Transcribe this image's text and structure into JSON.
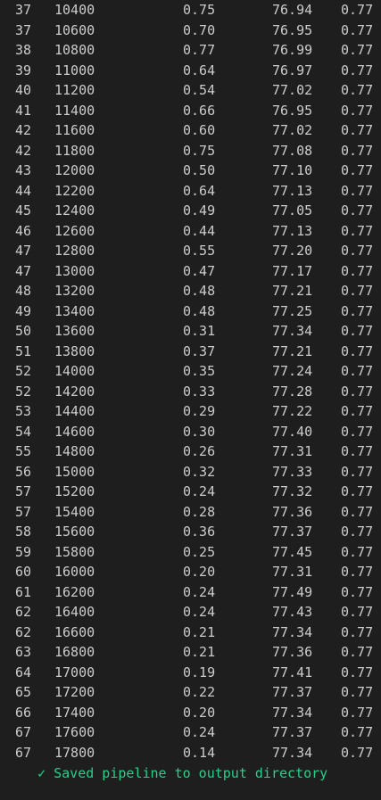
{
  "terminal": {
    "rows": [
      [
        "37",
        "10400",
        "0.75",
        "76.94",
        "0.77"
      ],
      [
        "37",
        "10600",
        "0.70",
        "76.95",
        "0.77"
      ],
      [
        "38",
        "10800",
        "0.77",
        "76.99",
        "0.77"
      ],
      [
        "39",
        "11000",
        "0.64",
        "76.97",
        "0.77"
      ],
      [
        "40",
        "11200",
        "0.54",
        "77.02",
        "0.77"
      ],
      [
        "41",
        "11400",
        "0.66",
        "76.95",
        "0.77"
      ],
      [
        "42",
        "11600",
        "0.60",
        "77.02",
        "0.77"
      ],
      [
        "42",
        "11800",
        "0.75",
        "77.08",
        "0.77"
      ],
      [
        "43",
        "12000",
        "0.50",
        "77.10",
        "0.77"
      ],
      [
        "44",
        "12200",
        "0.64",
        "77.13",
        "0.77"
      ],
      [
        "45",
        "12400",
        "0.49",
        "77.05",
        "0.77"
      ],
      [
        "46",
        "12600",
        "0.44",
        "77.13",
        "0.77"
      ],
      [
        "47",
        "12800",
        "0.55",
        "77.20",
        "0.77"
      ],
      [
        "47",
        "13000",
        "0.47",
        "77.17",
        "0.77"
      ],
      [
        "48",
        "13200",
        "0.48",
        "77.21",
        "0.77"
      ],
      [
        "49",
        "13400",
        "0.48",
        "77.25",
        "0.77"
      ],
      [
        "50",
        "13600",
        "0.31",
        "77.34",
        "0.77"
      ],
      [
        "51",
        "13800",
        "0.37",
        "77.21",
        "0.77"
      ],
      [
        "52",
        "14000",
        "0.35",
        "77.24",
        "0.77"
      ],
      [
        "52",
        "14200",
        "0.33",
        "77.28",
        "0.77"
      ],
      [
        "53",
        "14400",
        "0.29",
        "77.22",
        "0.77"
      ],
      [
        "54",
        "14600",
        "0.30",
        "77.40",
        "0.77"
      ],
      [
        "55",
        "14800",
        "0.26",
        "77.31",
        "0.77"
      ],
      [
        "56",
        "15000",
        "0.32",
        "77.33",
        "0.77"
      ],
      [
        "57",
        "15200",
        "0.24",
        "77.32",
        "0.77"
      ],
      [
        "57",
        "15400",
        "0.28",
        "77.36",
        "0.77"
      ],
      [
        "58",
        "15600",
        "0.36",
        "77.37",
        "0.77"
      ],
      [
        "59",
        "15800",
        "0.25",
        "77.45",
        "0.77"
      ],
      [
        "60",
        "16000",
        "0.20",
        "77.31",
        "0.77"
      ],
      [
        "61",
        "16200",
        "0.24",
        "77.49",
        "0.77"
      ],
      [
        "62",
        "16400",
        "0.24",
        "77.43",
        "0.77"
      ],
      [
        "62",
        "16600",
        "0.21",
        "77.34",
        "0.77"
      ],
      [
        "63",
        "16800",
        "0.21",
        "77.36",
        "0.77"
      ],
      [
        "64",
        "17000",
        "0.19",
        "77.41",
        "0.77"
      ],
      [
        "65",
        "17200",
        "0.22",
        "77.37",
        "0.77"
      ],
      [
        "66",
        "17400",
        "0.20",
        "77.34",
        "0.77"
      ],
      [
        "67",
        "17600",
        "0.24",
        "77.37",
        "0.77"
      ],
      [
        "67",
        "17800",
        "0.14",
        "77.34",
        "0.77"
      ]
    ],
    "status": {
      "icon": "check-icon",
      "icon_glyph": "✓",
      "text": "Saved pipeline to output directory",
      "color": "#23d18b"
    },
    "colors": {
      "background": "#1e1e1e",
      "text": "#cccccc",
      "success": "#23d18b"
    }
  }
}
